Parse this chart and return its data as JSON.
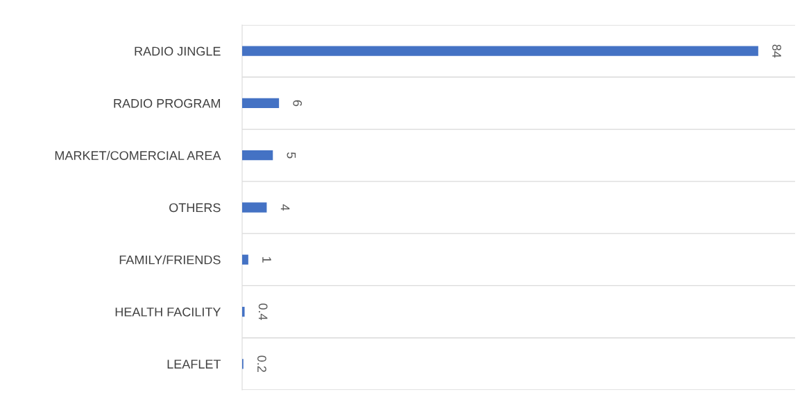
{
  "chart_data": {
    "type": "bar",
    "orientation": "horizontal",
    "categories": [
      "RADIO JINGLE",
      "RADIO PROGRAM",
      "MARKET/COMERCIAL AREA",
      "OTHERS",
      "FAMILY/FRIENDS",
      "HEALTH FACILITY",
      "LEAFLET"
    ],
    "values": [
      84,
      6,
      5,
      4,
      1,
      0.4,
      0.2
    ],
    "color": "#4472c4",
    "data_labels": true,
    "xlim": [
      0,
      90
    ],
    "grid": "y",
    "tick_labels": "y",
    "legend": false
  }
}
